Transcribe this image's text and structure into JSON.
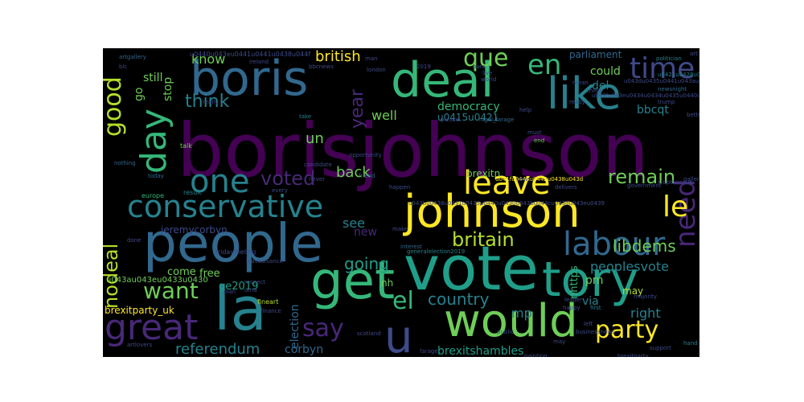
{
  "palette": {
    "purple": "#440154",
    "darkpurple": "#482878",
    "indigo": "#3e4a89",
    "blue": "#31688e",
    "teal": "#26828e",
    "cyan": "#1f9e89",
    "green": "#35b779",
    "lightgreen": "#6ece58",
    "yellow": "#fde725",
    "olive": "#b5de2b"
  },
  "words": [
    {
      "text": "borisjohnson",
      "color": "#440154"
    },
    {
      "text": "boris",
      "color": "#31688e"
    },
    {
      "text": "deal",
      "color": "#35b779"
    },
    {
      "text": "like",
      "color": "#26828e"
    },
    {
      "text": "time",
      "color": "#3e4a89"
    },
    {
      "text": "en",
      "color": "#35b779"
    },
    {
      "text": "que",
      "color": "#6ece58"
    },
    {
      "text": "people",
      "color": "#31688e"
    },
    {
      "text": "vote",
      "color": "#1f9e89"
    },
    {
      "text": "tory",
      "color": "#1f9e89"
    },
    {
      "text": "get",
      "color": "#35b779"
    },
    {
      "text": "la",
      "color": "#26828e"
    },
    {
      "text": "would",
      "color": "#6ece58"
    },
    {
      "text": "johnson",
      "color": "#fde725"
    },
    {
      "text": "conservative",
      "color": "#26828e"
    },
    {
      "text": "day",
      "color": "#35b779"
    },
    {
      "text": "good",
      "color": "#b5de2b"
    },
    {
      "text": "one",
      "color": "#26828e"
    },
    {
      "text": "great",
      "color": "#482878"
    },
    {
      "text": "leave",
      "color": "#fde725"
    },
    {
      "text": "labour",
      "color": "#31688e"
    },
    {
      "text": "need",
      "color": "#482878"
    },
    {
      "text": "le",
      "color": "#fde725"
    },
    {
      "text": "party",
      "color": "#fde725"
    },
    {
      "text": "u",
      "color": "#3e4a89"
    },
    {
      "text": "el",
      "color": "#35b779"
    },
    {
      "text": "say",
      "color": "#482878"
    },
    {
      "text": "want",
      "color": "#6ece58"
    },
    {
      "text": "think",
      "color": "#26828e"
    },
    {
      "text": "year",
      "color": "#482878"
    },
    {
      "text": "nodeal",
      "color": "#b5de2b"
    },
    {
      "text": "voted",
      "color": "#482878"
    },
    {
      "text": "remain",
      "color": "#6ece58"
    },
    {
      "text": "britain",
      "color": "#b5de2b"
    },
    {
      "text": "libdems",
      "color": "#6ece58"
    },
    {
      "text": "going",
      "color": "#1f9e89"
    },
    {
      "text": "country",
      "color": "#26828e"
    },
    {
      "text": "peoplesvote",
      "color": "#26828e"
    },
    {
      "text": "referendum",
      "color": "#26828e"
    },
    {
      "text": "brexitshambles",
      "color": "#1f9e89"
    },
    {
      "text": "british",
      "color": "#fde725"
    },
    {
      "text": "know",
      "color": "#6ece58"
    },
    {
      "text": "still",
      "color": "#6ece58"
    },
    {
      "text": "stop",
      "color": "#6ece58"
    },
    {
      "text": "go",
      "color": "#6ece58"
    },
    {
      "text": "parliament",
      "color": "#31688e"
    },
    {
      "text": "could",
      "color": "#6ece58"
    },
    {
      "text": "del",
      "color": "#26828e"
    },
    {
      "text": "bbcqt",
      "color": "#26828e"
    },
    {
      "text": "u0415u0421",
      "color": "#26828e"
    },
    {
      "text": "well",
      "color": "#6ece58"
    },
    {
      "text": "democracy",
      "color": "#35b779"
    },
    {
      "text": "un",
      "color": "#6ece58"
    },
    {
      "text": "back",
      "color": "#6ece58"
    },
    {
      "text": "see",
      "color": "#26828e"
    },
    {
      "text": "new",
      "color": "#482878"
    },
    {
      "text": "brexitn",
      "color": "#6ece58"
    },
    {
      "text": "election",
      "color": "#31688e"
    },
    {
      "text": "corbyn",
      "color": "#31688e"
    },
    {
      "text": "jeremycorbyn",
      "color": "#3e4a89"
    },
    {
      "text": "come",
      "color": "#6ece58"
    },
    {
      "text": "free",
      "color": "#6ece58"
    },
    {
      "text": "ge2019",
      "color": "#1f9e89"
    },
    {
      "text": "mp",
      "color": "#26828e"
    },
    {
      "text": "pm",
      "color": "#6ece58"
    },
    {
      "text": "may",
      "color": "#b5de2b"
    },
    {
      "text": "via",
      "color": "#26828e"
    },
    {
      "text": "right",
      "color": "#26828e"
    },
    {
      "text": "nhttps",
      "color": "#35b779"
    },
    {
      "text": "nh",
      "color": "#6ece58"
    },
    {
      "text": "brexitparty_uk",
      "color": "#fde725"
    },
    {
      "text": "u043au043eu0433u0430",
      "color": "#6ece58"
    },
    {
      "text": "u0440u043eu0441u0441u0438u044f",
      "color": "#3e4a89"
    },
    {
      "text": "u041fu0443u0442u0438u043d",
      "color": "#fde725"
    },
    {
      "text": "fridayfeeling",
      "color": "#3e4a89"
    },
    {
      "text": "generalelection2019",
      "color": "#26828e"
    },
    {
      "text": "artgallery",
      "color": "#31688e"
    },
    {
      "text": "politician",
      "color": "#26828e"
    },
    {
      "text": "london",
      "color": "#3e4a89"
    },
    {
      "text": "europe",
      "color": "#35b779"
    },
    {
      "text": "result",
      "color": "#26828e"
    },
    {
      "text": "candidate",
      "color": "#3e4a89"
    },
    {
      "text": "friend",
      "color": "#31688e"
    },
    {
      "text": "happen",
      "color": "#3e4a89"
    },
    {
      "text": "government",
      "color": "#3e4a89"
    },
    {
      "text": "nothing",
      "color": "#31688e"
    },
    {
      "text": "talk",
      "color": "#6ece58"
    },
    {
      "text": "take",
      "color": "#26828e"
    },
    {
      "text": "ireland",
      "color": "#3e4a89"
    },
    {
      "text": "farage",
      "color": "#3e4a89"
    },
    {
      "text": "newsnight",
      "color": "#31688e"
    },
    {
      "text": "interest",
      "color": "#31688e"
    },
    {
      "text": "leader",
      "color": "#3e4a89"
    },
    {
      "text": "first",
      "color": "#26828e"
    },
    {
      "text": "majority",
      "color": "#3e4a89"
    },
    {
      "text": "finance",
      "color": "#3e4a89"
    },
    {
      "text": "hand",
      "color": "#26828e"
    },
    {
      "text": "support",
      "color": "#3e4a89"
    },
    {
      "text": "today",
      "color": "#31688e"
    },
    {
      "text": "done",
      "color": "#3e4a89"
    },
    {
      "text": "every",
      "color": "#3e4a89"
    },
    {
      "text": "never",
      "color": "#3e4a89"
    },
    {
      "text": "make",
      "color": "#3e4a89"
    },
    {
      "text": "ready",
      "color": "#3e4a89"
    },
    {
      "text": "help",
      "color": "#3e4a89"
    },
    {
      "text": "public",
      "color": "#3e4a89"
    },
    {
      "text": "gallery",
      "color": "#3e4a89"
    },
    {
      "text": "stopthecoup",
      "color": "#3e4a89"
    },
    {
      "text": "please",
      "color": "#3e4a89"
    },
    {
      "text": "nigel_farage",
      "color": "#31688e"
    },
    {
      "text": "opportunity",
      "color": "#3e4a89"
    },
    {
      "text": "2019",
      "color": "#3e4a89"
    },
    {
      "text": "end",
      "color": "#6ece58"
    },
    {
      "text": "thing",
      "color": "#3e4a89"
    },
    {
      "text": "really",
      "color": "#3e4a89"
    },
    {
      "text": "brexitparty",
      "color": "#3e4a89"
    },
    {
      "text": "fineart",
      "color": "#b5de2b"
    },
    {
      "text": "respect",
      "color": "#3e4a89"
    },
    {
      "text": "scotland",
      "color": "#3e4a89"
    },
    {
      "text": "happy",
      "color": "#3e4a89"
    },
    {
      "text": "uma",
      "color": "#3e4a89"
    },
    {
      "text": "painting",
      "color": "#3e4a89"
    },
    {
      "text": "businessnews",
      "color": "#3e4a89"
    },
    {
      "text": "artlovers",
      "color": "#3e4a89"
    },
    {
      "text": "bbcnews",
      "color": "#3e4a89"
    },
    {
      "text": "leavealliance",
      "color": "#3e4a89"
    },
    {
      "text": "news",
      "color": "#3e4a89"
    },
    {
      "text": "delivers",
      "color": "#3e4a89"
    },
    {
      "text": "left",
      "color": "#3e4a89"
    },
    {
      "text": "art",
      "color": "#3e4a89"
    },
    {
      "text": "para",
      "color": "#3e4a89"
    },
    {
      "text": "man",
      "color": "#3e4a89"
    },
    {
      "text": "plan",
      "color": "#3e4a89"
    },
    {
      "text": "mean",
      "color": "#3e4a89"
    },
    {
      "text": "live",
      "color": "#3e4a89"
    },
    {
      "text": "blc",
      "color": "#3e4a89"
    },
    {
      "text": "may",
      "color": "#3e4a89"
    },
    {
      "text": "world",
      "color": "#3e4a89"
    },
    {
      "text": "must",
      "color": "#3e4a89"
    },
    {
      "text": "better",
      "color": "#3e4a89"
    },
    {
      "text": "trump",
      "color": "#3e4a89"
    },
    {
      "text": "u0421u0428u0410",
      "color": "#26828e"
    },
    {
      "text": "u043fu043eu0434u0434u0435u0440u0436u043au0430",
      "color": "#3e4a89"
    },
    {
      "text": "u043bu0438u0431u0435u0440u0430u043bu044cu043du043eu0439",
      "color": "#3e4a89"
    },
    {
      "text": "u043du0435u0441u043au043eu043bu044cu043au043e",
      "color": "#3e4a89"
    }
  ]
}
